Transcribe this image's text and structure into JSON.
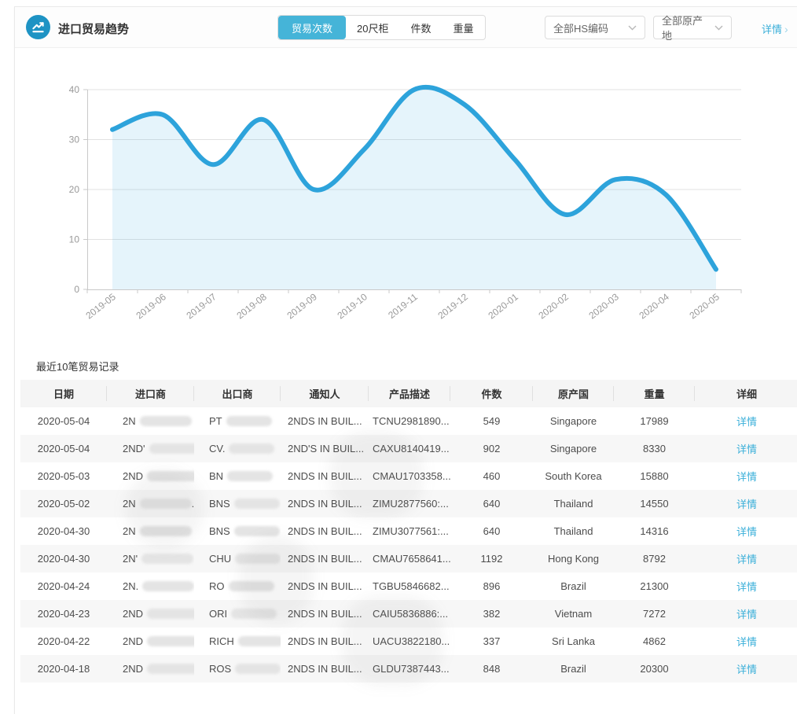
{
  "header": {
    "title": "进口贸易趋势",
    "tabs": [
      {
        "name": "tab-trade-count",
        "label": "贸易次数",
        "active": true
      },
      {
        "name": "tab-20ft-container",
        "label": "20尺柜",
        "active": false
      },
      {
        "name": "tab-pieces",
        "label": "件数",
        "active": false
      },
      {
        "name": "tab-weight",
        "label": "重量",
        "active": false
      }
    ],
    "filters": [
      {
        "name": "hs-code-select",
        "value": "全部HS编码"
      },
      {
        "name": "origin-select",
        "value": "全部原产地"
      }
    ],
    "detail_link": "详情",
    "detail_arrow": "›"
  },
  "colors": {
    "accent": "#45b4d8",
    "link": "#3aafd9",
    "icon_circle": "#1e93c4",
    "line": "#2da3db",
    "grid": "#e2e2e2",
    "axis": "#c9c9c9",
    "tick_text": "#999999"
  },
  "chart_data": {
    "type": "area",
    "title": "进口贸易趋势 (贸易次数)",
    "x": [
      "2019-05",
      "2019-06",
      "2019-07",
      "2019-08",
      "2019-09",
      "2019-10",
      "2019-11",
      "2019-12",
      "2020-01",
      "2020-02",
      "2020-03",
      "2020-04",
      "2020-05"
    ],
    "series": [
      {
        "name": "贸易次数",
        "values": [
          32,
          35,
          25,
          34,
          20,
          28,
          40,
          37,
          26,
          15,
          22,
          19,
          4
        ]
      }
    ],
    "ylim": [
      0,
      40
    ],
    "yticks": [
      0,
      10,
      20,
      30,
      40
    ],
    "grid": true,
    "smooth": true,
    "legend_position": "none",
    "xlabel": "",
    "ylabel": "",
    "line_color": "#2da3db",
    "area_color": "rgba(45,163,219,0.12)",
    "grid_color": "#e2e2e2",
    "axis_color": "#c9c9c9",
    "tick_color": "#999999"
  },
  "table": {
    "title": "最近10笔贸易记录",
    "columns": [
      "日期",
      "进口商",
      "出口商",
      "通知人",
      "产品描述",
      "件数",
      "原产国",
      "重量",
      "详细"
    ],
    "detail_label": "详情",
    "rows": [
      {
        "date": "2020-05-04",
        "importer_prefix": "2N",
        "importer_suffix": "",
        "exporter_prefix": "PT",
        "notify": "2NDS IN BUIL...",
        "product": "TCNU2981890...",
        "pieces": "549",
        "origin": "Singapore",
        "weight": "17989"
      },
      {
        "date": "2020-05-04",
        "importer_prefix": "2ND'",
        "importer_suffix": "",
        "exporter_prefix": "CV.",
        "notify": "2ND'S IN BUIL...",
        "product": "CAXU8140419...",
        "pieces": "902",
        "origin": "Singapore",
        "weight": "8330"
      },
      {
        "date": "2020-05-03",
        "importer_prefix": "2ND",
        "importer_suffix": "",
        "exporter_prefix": "BN",
        "notify": "2NDS IN BUIL...",
        "product": "CMAU1703358...",
        "pieces": "460",
        "origin": "South Korea",
        "weight": "15880"
      },
      {
        "date": "2020-05-02",
        "importer_prefix": "2N",
        "importer_suffix": ".",
        "exporter_prefix": "BNS",
        "notify": "2NDS IN BUIL...",
        "product": "ZIMU2877560:...",
        "pieces": "640",
        "origin": "Thailand",
        "weight": "14550"
      },
      {
        "date": "2020-04-30",
        "importer_prefix": "2N",
        "importer_suffix": "",
        "exporter_prefix": "BNS",
        "notify": "2NDS IN BUIL...",
        "product": "ZIMU3077561:...",
        "pieces": "640",
        "origin": "Thailand",
        "weight": "14316"
      },
      {
        "date": "2020-04-30",
        "importer_prefix": "2N'",
        "importer_suffix": "",
        "exporter_prefix": "CHU",
        "notify": "2NDS IN BUIL...",
        "product": "CMAU7658641...",
        "pieces": "1192",
        "origin": "Hong Kong",
        "weight": "8792"
      },
      {
        "date": "2020-04-24",
        "importer_prefix": "2N.",
        "importer_suffix": "",
        "exporter_prefix": "RO",
        "notify": "2NDS IN BUIL...",
        "product": "TGBU5846682...",
        "pieces": "896",
        "origin": "Brazil",
        "weight": "21300"
      },
      {
        "date": "2020-04-23",
        "importer_prefix": "2ND",
        "importer_suffix": "",
        "exporter_prefix": "ORI",
        "notify": "2NDS IN BUIL...",
        "product": "CAIU5836886:...",
        "pieces": "382",
        "origin": "Vietnam",
        "weight": "7272"
      },
      {
        "date": "2020-04-22",
        "importer_prefix": "2ND",
        "importer_suffix": "",
        "exporter_prefix": "RICH",
        "notify": "2NDS IN BUIL...",
        "product": "UACU3822180...",
        "pieces": "337",
        "origin": "Sri Lanka",
        "weight": "4862"
      },
      {
        "date": "2020-04-18",
        "importer_prefix": "2ND",
        "importer_suffix": ".",
        "exporter_prefix": "ROS",
        "notify": "2NDS IN BUIL...",
        "product": "GLDU7387443...",
        "pieces": "848",
        "origin": "Brazil",
        "weight": "20300"
      }
    ]
  }
}
